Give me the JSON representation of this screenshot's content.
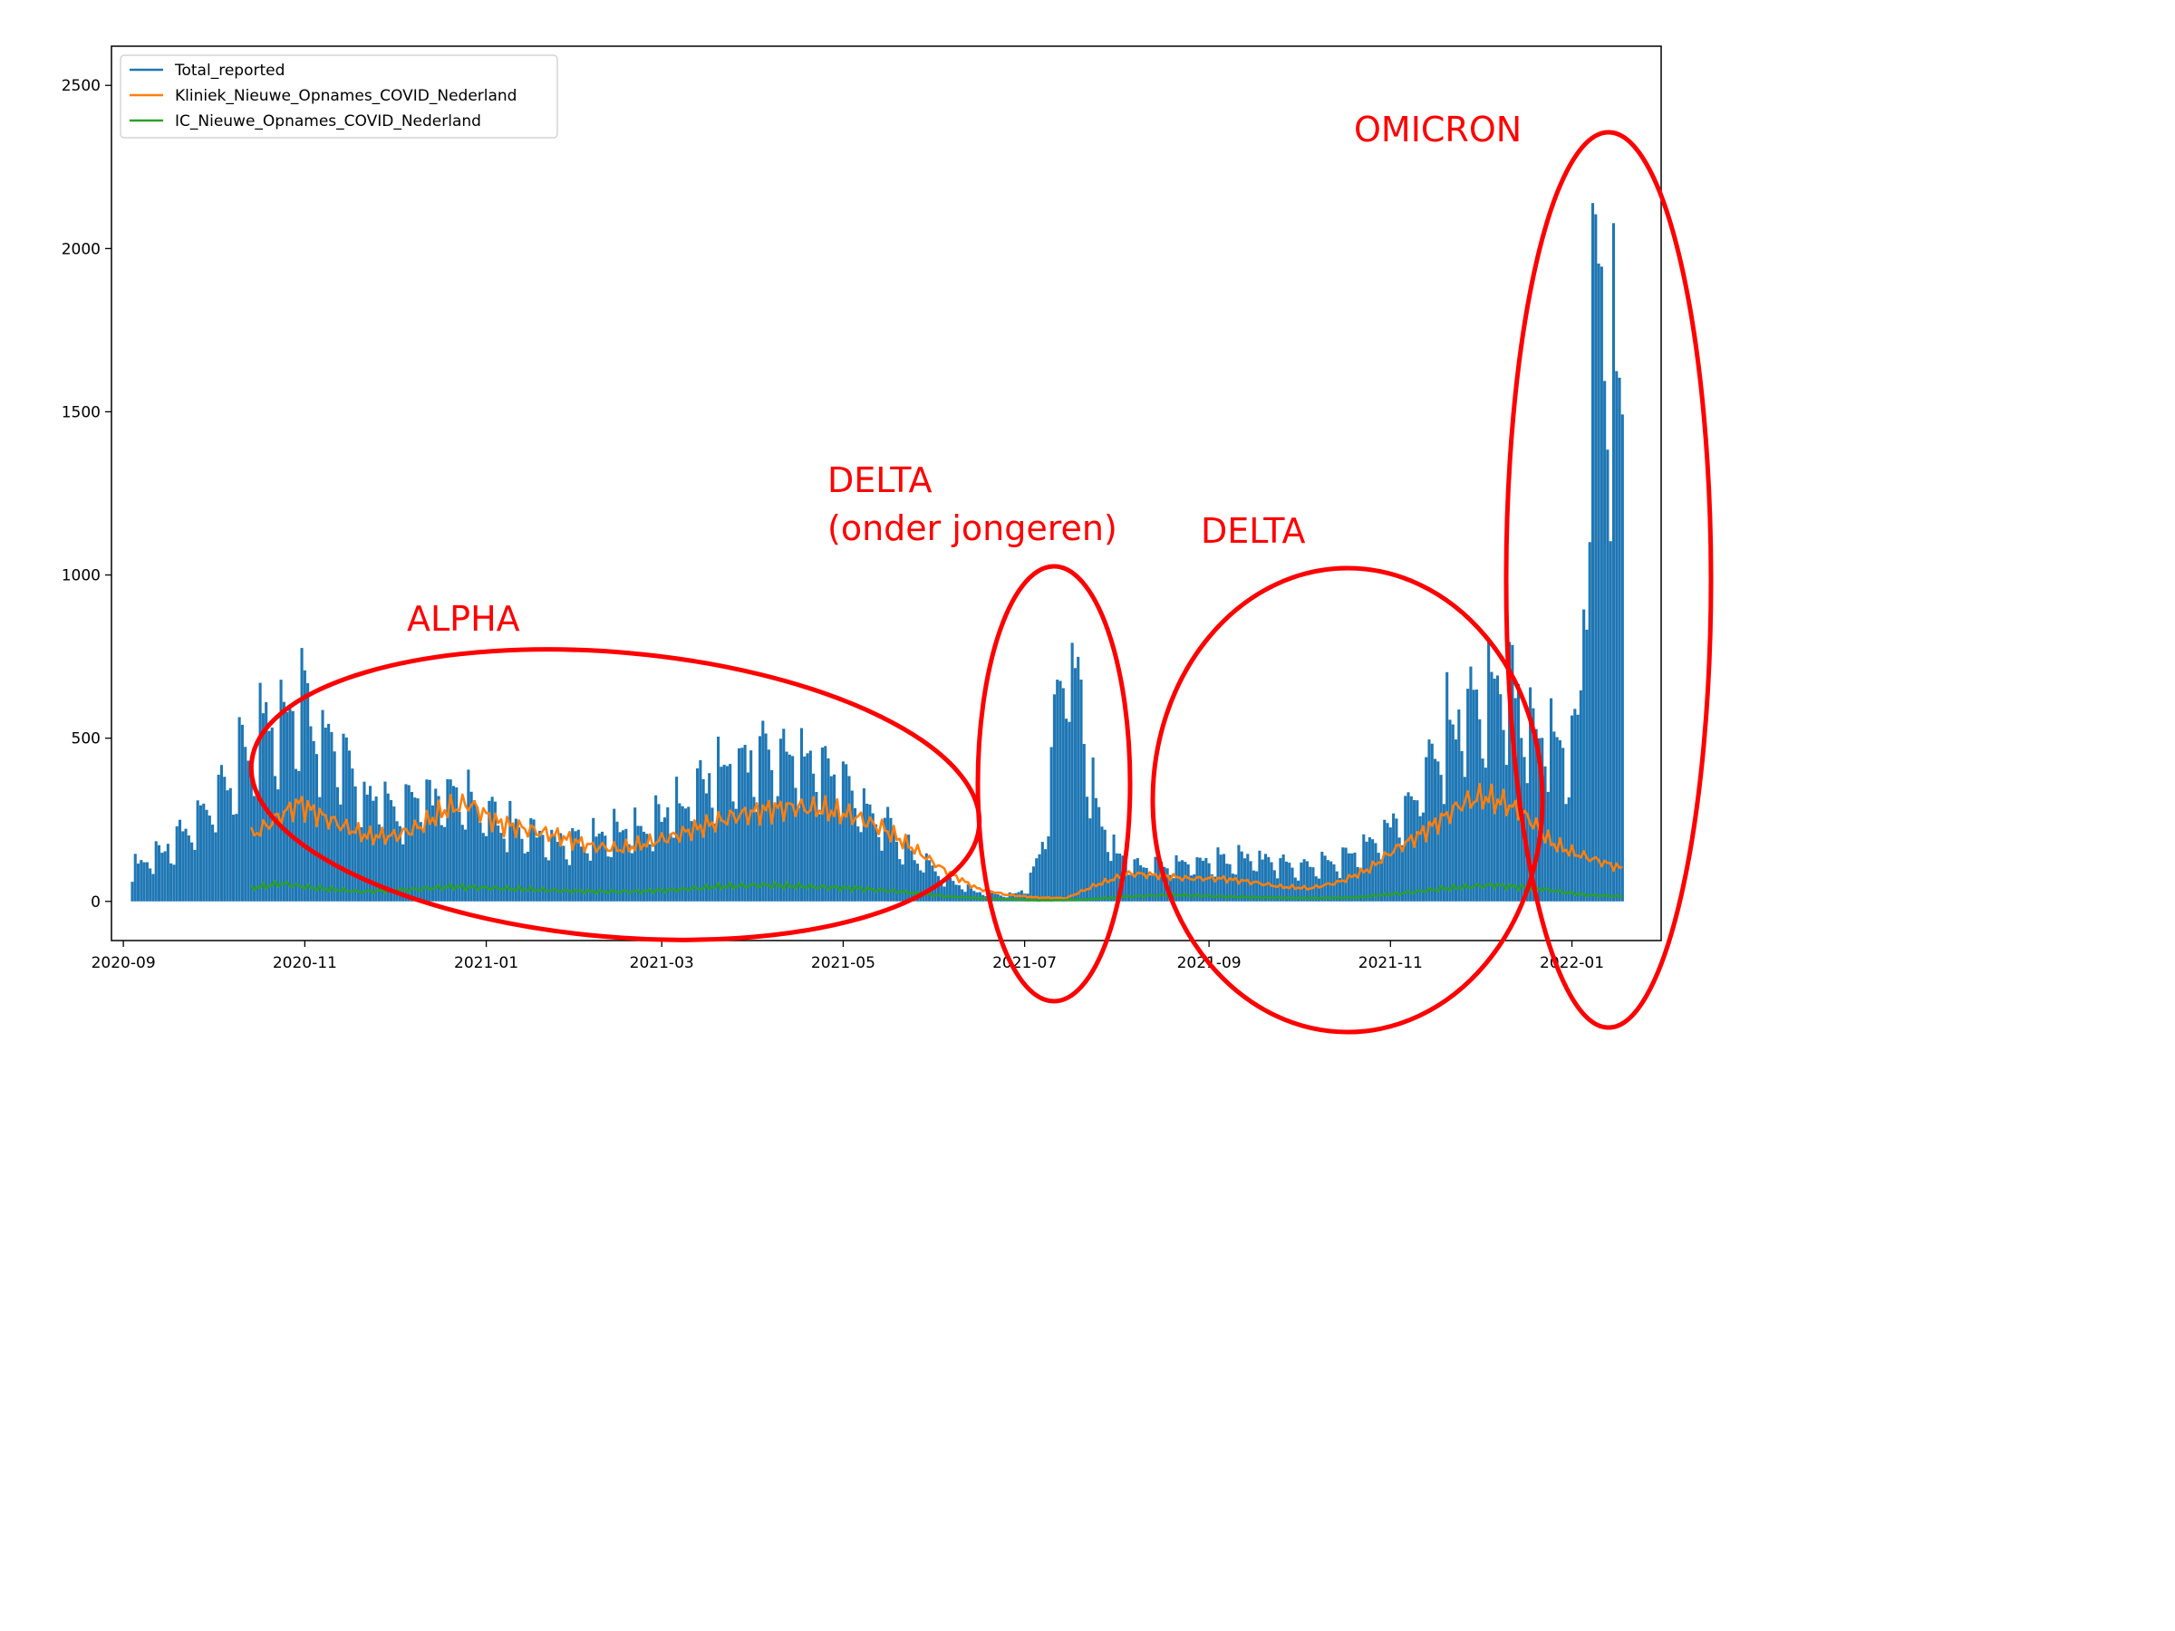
{
  "chart_data": {
    "type": "line",
    "title": "",
    "xlabel": "",
    "ylabel": "",
    "x_range": [
      "2020-08-28",
      "2022-01-31"
    ],
    "ylim": [
      -120,
      2620
    ],
    "x_ticks": [
      "2020-09",
      "2020-11",
      "2021-01",
      "2021-03",
      "2021-05",
      "2021-07",
      "2021-09",
      "2021-11",
      "2022-01"
    ],
    "y_ticks": [
      0,
      500,
      1000,
      1500,
      2000,
      2500
    ],
    "grid": false,
    "legend_position": "top-left",
    "series": [
      {
        "name": "Total_reported",
        "color": "#1f77b4",
        "style": "daily bars (thin lines, weekly oscillation)",
        "dates": [
          "2020-09-04",
          "2020-09-10",
          "2020-09-20",
          "2020-10-01",
          "2020-10-10",
          "2020-10-18",
          "2020-10-24",
          "2020-10-30",
          "2020-11-05",
          "2020-11-12",
          "2020-11-20",
          "2020-11-30",
          "2020-12-10",
          "2020-12-20",
          "2020-12-25",
          "2021-01-05",
          "2021-01-15",
          "2021-01-25",
          "2021-02-05",
          "2021-02-15",
          "2021-02-25",
          "2021-03-05",
          "2021-03-15",
          "2021-03-25",
          "2021-04-05",
          "2021-04-15",
          "2021-04-25",
          "2021-05-05",
          "2021-05-15",
          "2021-05-25",
          "2021-06-05",
          "2021-06-15",
          "2021-06-25",
          "2021-07-02",
          "2021-07-08",
          "2021-07-12",
          "2021-07-16",
          "2021-07-20",
          "2021-07-25",
          "2021-08-01",
          "2021-08-10",
          "2021-08-20",
          "2021-09-01",
          "2021-09-15",
          "2021-10-01",
          "2021-10-15",
          "2021-10-25",
          "2021-11-01",
          "2021-11-10",
          "2021-11-18",
          "2021-11-25",
          "2021-12-01",
          "2021-12-10",
          "2021-12-18",
          "2021-12-25",
          "2021-12-30",
          "2022-01-04",
          "2022-01-08",
          "2022-01-12",
          "2022-01-16",
          "2022-01-18"
        ],
        "values": [
          110,
          140,
          210,
          300,
          440,
          560,
          620,
          640,
          600,
          480,
          350,
          300,
          320,
          340,
          320,
          270,
          220,
          200,
          200,
          230,
          250,
          300,
          380,
          440,
          480,
          470,
          430,
          350,
          250,
          150,
          70,
          30,
          20,
          40,
          220,
          700,
          800,
          650,
          300,
          140,
          120,
          120,
          130,
          140,
          110,
          130,
          180,
          240,
          380,
          520,
          620,
          650,
          680,
          600,
          520,
          480,
          650,
          2000,
          1800,
          1700,
          1600
        ]
      },
      {
        "name": "Kliniek_Nieuwe_Opnames_COVID_Nederland",
        "color": "#ff7f0e",
        "dates": [
          "2020-10-14",
          "2020-10-22",
          "2020-10-30",
          "2020-11-07",
          "2020-11-14",
          "2020-11-22",
          "2020-12-01",
          "2020-12-10",
          "2020-12-18",
          "2020-12-26",
          "2021-01-05",
          "2021-01-15",
          "2021-01-25",
          "2021-02-05",
          "2021-02-15",
          "2021-02-25",
          "2021-03-05",
          "2021-03-15",
          "2021-03-25",
          "2021-04-05",
          "2021-04-15",
          "2021-04-25",
          "2021-05-05",
          "2021-05-15",
          "2021-05-25",
          "2021-06-05",
          "2021-06-15",
          "2021-06-25",
          "2021-07-05",
          "2021-07-15",
          "2021-07-25",
          "2021-08-05",
          "2021-08-15",
          "2021-08-25",
          "2021-09-05",
          "2021-09-15",
          "2021-09-25",
          "2021-10-05",
          "2021-10-15",
          "2021-10-25",
          "2021-11-01",
          "2021-11-10",
          "2021-11-18",
          "2021-11-25",
          "2021-12-02",
          "2021-12-10",
          "2021-12-18",
          "2021-12-25",
          "2022-01-01",
          "2022-01-08",
          "2022-01-18"
        ],
        "values": [
          200,
          250,
          300,
          260,
          230,
          200,
          200,
          230,
          280,
          300,
          240,
          220,
          200,
          170,
          160,
          180,
          200,
          230,
          260,
          280,
          290,
          280,
          260,
          220,
          160,
          90,
          40,
          20,
          12,
          10,
          50,
          85,
          80,
          70,
          70,
          60,
          45,
          40,
          60,
          100,
          150,
          200,
          250,
          300,
          320,
          300,
          250,
          180,
          150,
          130,
          100
        ]
      },
      {
        "name": "IC_Nieuwe_Opnames_COVID_Nederland",
        "color": "#2ca02c",
        "dates": [
          "2020-10-14",
          "2020-10-24",
          "2020-11-05",
          "2020-11-20",
          "2020-12-05",
          "2020-12-20",
          "2021-01-05",
          "2021-01-20",
          "2021-02-05",
          "2021-02-20",
          "2021-03-05",
          "2021-03-20",
          "2021-04-05",
          "2021-04-20",
          "2021-05-05",
          "2021-05-20",
          "2021-06-05",
          "2021-06-20",
          "2021-07-05",
          "2021-07-20",
          "2021-08-05",
          "2021-08-20",
          "2021-09-05",
          "2021-09-20",
          "2021-10-05",
          "2021-10-20",
          "2021-11-05",
          "2021-11-20",
          "2021-12-05",
          "2021-12-20",
          "2022-01-05",
          "2022-01-18"
        ],
        "values": [
          40,
          55,
          40,
          30,
          35,
          45,
          40,
          35,
          30,
          30,
          35,
          45,
          50,
          45,
          40,
          30,
          15,
          8,
          3,
          5,
          15,
          20,
          15,
          12,
          10,
          12,
          25,
          40,
          50,
          40,
          20,
          15
        ]
      }
    ]
  },
  "annotations": [
    {
      "text": "ALPHA"
    },
    {
      "text": "DELTA"
    },
    {
      "text": "(onder jongeren)"
    },
    {
      "text": "DELTA"
    },
    {
      "text": "OMICRON"
    }
  ],
  "colors": {
    "annotation": "#ff0000",
    "axes": "#000000",
    "background": "#ffffff"
  }
}
